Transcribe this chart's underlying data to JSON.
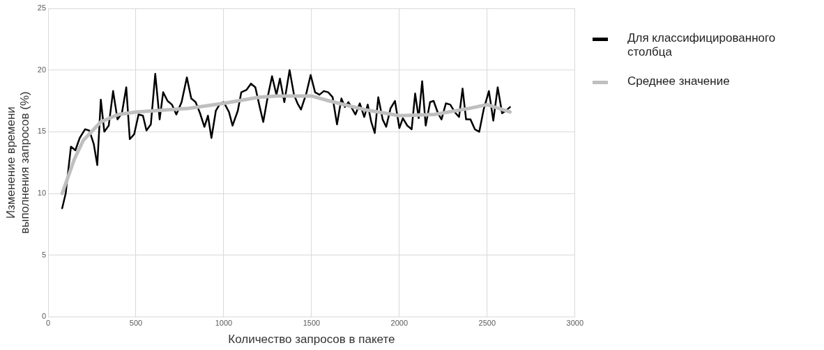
{
  "chart_data": {
    "type": "line",
    "xlabel": "Количество запросов в пакете",
    "ylabel": "Изменение времени выполнения запросов (%)",
    "xlim": [
      0,
      3000
    ],
    "xticks": [
      0,
      500,
      1000,
      1500,
      2000,
      2500,
      3000
    ],
    "ylim": [
      0,
      25
    ],
    "yticks": [
      0,
      5,
      10,
      15,
      20,
      25
    ],
    "grid": true,
    "legend": "right",
    "marker": "none",
    "line_style": "solid",
    "series": [
      {
        "name": "Для классифицированного столбца",
        "color": "#000000",
        "x": [
          80,
          100,
          130,
          155,
          180,
          210,
          235,
          260,
          280,
          300,
          320,
          345,
          370,
          395,
          420,
          445,
          465,
          490,
          515,
          540,
          560,
          585,
          610,
          635,
          655,
          680,
          705,
          730,
          760,
          790,
          815,
          840,
          865,
          890,
          910,
          930,
          955,
          980,
          1000,
          1030,
          1050,
          1080,
          1100,
          1130,
          1155,
          1180,
          1205,
          1225,
          1250,
          1275,
          1300,
          1320,
          1345,
          1375,
          1400,
          1420,
          1440,
          1470,
          1495,
          1520,
          1545,
          1570,
          1595,
          1620,
          1645,
          1670,
          1690,
          1710,
          1730,
          1750,
          1775,
          1800,
          1820,
          1840,
          1860,
          1880,
          1905,
          1925,
          1950,
          1975,
          2000,
          2020,
          2045,
          2070,
          2090,
          2110,
          2130,
          2150,
          2175,
          2195,
          2220,
          2240,
          2265,
          2290,
          2315,
          2340,
          2360,
          2380,
          2405,
          2430,
          2455,
          2480,
          2510,
          2535,
          2560,
          2585,
          2615,
          2630
        ],
        "values": [
          8.8,
          10.0,
          13.8,
          13.5,
          14.5,
          15.2,
          15.1,
          14,
          12.3,
          17.6,
          15,
          15.5,
          18.3,
          16,
          16.5,
          18.6,
          14.4,
          14.8,
          16.4,
          16.3,
          15.1,
          15.6,
          19.7,
          16,
          18.2,
          17.5,
          17.2,
          16.4,
          17.4,
          19.4,
          17.7,
          17.4,
          16.5,
          15.4,
          16.3,
          14.5,
          16.7,
          17.3,
          17.4,
          16.6,
          15.5,
          16.7,
          18.2,
          18.4,
          18.9,
          18.6,
          17,
          15.8,
          17.8,
          19.5,
          18,
          19.3,
          17.4,
          20,
          18,
          17.3,
          16.8,
          18.1,
          19.6,
          18.2,
          18,
          18.3,
          18.2,
          17.8,
          15.6,
          17.7,
          17,
          17.4,
          16.9,
          16.4,
          17.3,
          16.2,
          17.2,
          15.8,
          14.9,
          17.8,
          16,
          15.4,
          16.9,
          17.5,
          15.3,
          16.1,
          15.5,
          15.2,
          18.1,
          16.1,
          19.1,
          15.5,
          17.4,
          17.5,
          16.5,
          16,
          17.3,
          17.2,
          16.6,
          16.2,
          18.5,
          16,
          16,
          15.2,
          15,
          16.8,
          18.3,
          15.9,
          18.6,
          16.5,
          16.8,
          17.0
        ]
      },
      {
        "name": "Среднее значение",
        "color": "#bfbfbf",
        "x": [
          80,
          150,
          200,
          300,
          400,
          500,
          600,
          800,
          1000,
          1200,
          1300,
          1500,
          1600,
          1800,
          2000,
          2200,
          2400,
          2500,
          2630
        ],
        "values": [
          10,
          12.8,
          14.3,
          15.8,
          16.4,
          16.6,
          16.7,
          16.9,
          17.3,
          17.8,
          17.9,
          17.9,
          17.5,
          16.8,
          16.3,
          16.4,
          16.9,
          17.2,
          16.6
        ]
      }
    ]
  }
}
